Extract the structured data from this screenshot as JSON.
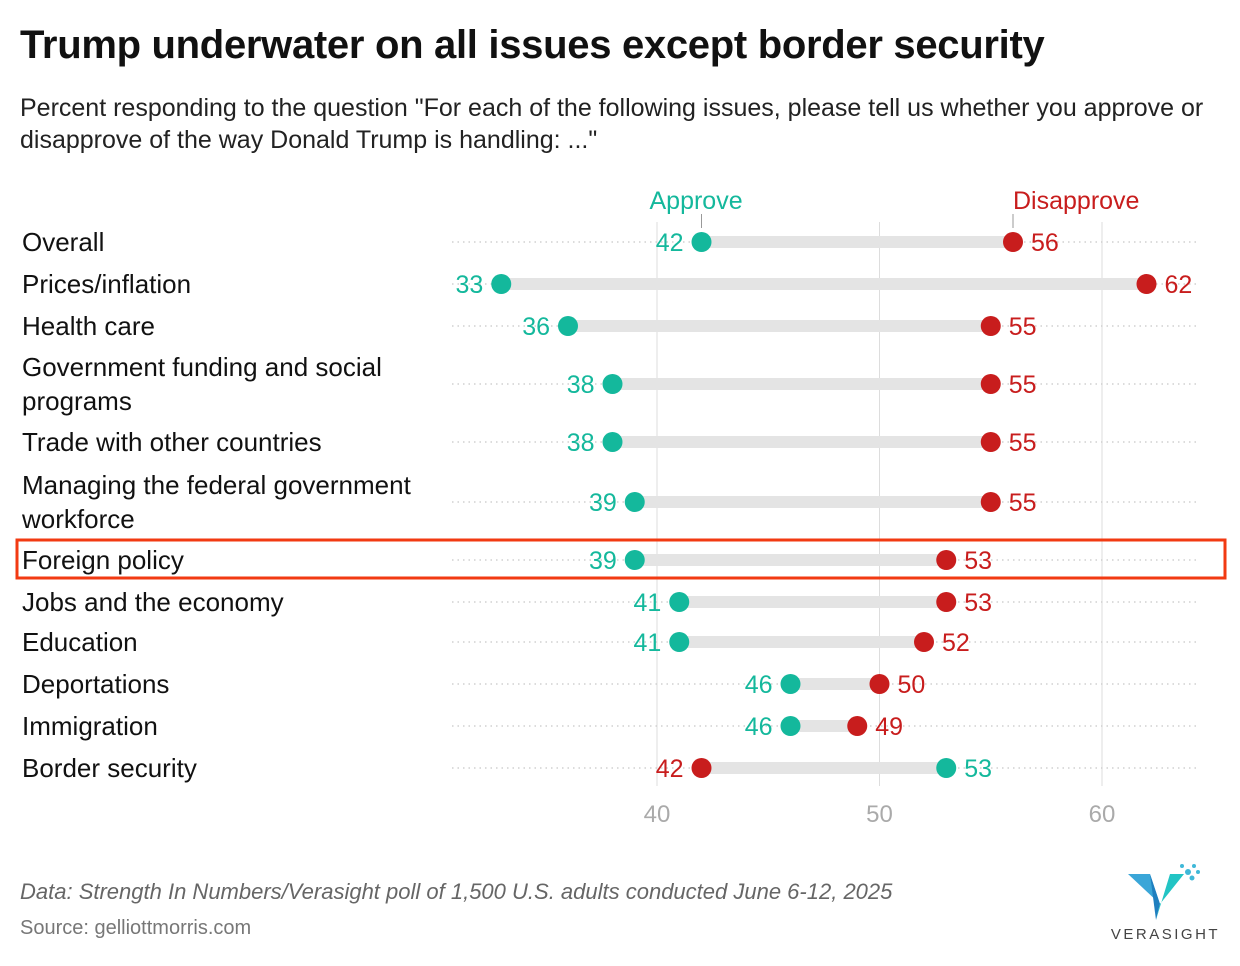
{
  "title": "Trump underwater on all issues except border security",
  "subtitle": "Percent responding to the question \"For each of the following issues, please tell us whether you approve or disapprove of the way Donald Trump is handling: ...\"",
  "footer": {
    "data_note": "Data: Strength In Numbers/Verasight poll of 1,500 U.S. adults conducted June 6-12, 2025",
    "source": "Source: gelliottmorris.com"
  },
  "logo": {
    "text": "VERASIGHT",
    "icon": "verasight-v-logo"
  },
  "colors": {
    "approve": "#14b89c",
    "disapprove": "#c81d1d",
    "highlight": "#f23a12",
    "bar": "#e4e4e4"
  },
  "highlight_category": "Foreign policy",
  "chart_data": {
    "type": "dot-range",
    "legend": {
      "approve": "Approve",
      "disapprove": "Disapprove"
    },
    "categories": [
      "Overall",
      "Prices/inflation",
      "Health care",
      "Government funding and social programs",
      "Trade with other countries",
      "Managing the federal government workforce",
      "Foreign policy",
      "Jobs and the economy",
      "Education",
      "Deportations",
      "Immigration",
      "Border security"
    ],
    "series": [
      {
        "name": "Approve",
        "values": [
          42,
          33,
          36,
          38,
          38,
          39,
          39,
          41,
          41,
          46,
          46,
          53
        ]
      },
      {
        "name": "Disapprove",
        "values": [
          56,
          62,
          55,
          55,
          55,
          55,
          53,
          53,
          52,
          50,
          49,
          42
        ]
      }
    ],
    "xticks": [
      40,
      50,
      60
    ],
    "xlim": [
      31,
      65
    ],
    "grid": true,
    "legend_placement": "top"
  }
}
